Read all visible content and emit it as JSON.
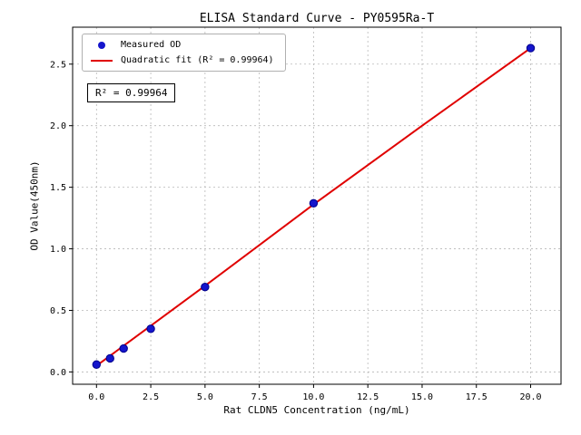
{
  "chart_data": {
    "type": "scatter",
    "title": "ELISA Standard Curve - PY0595Ra-T",
    "xlabel": "Rat CLDN5 Concentration (ng/mL)",
    "ylabel": "OD Value(450nm)",
    "xlim": [
      -1.1,
      21.4
    ],
    "ylim": [
      -0.1,
      2.8
    ],
    "grid": true,
    "xtick_values": [
      0.0,
      2.5,
      5.0,
      7.5,
      10.0,
      12.5,
      15.0,
      17.5,
      20.0
    ],
    "xtick_labels": [
      "0.0",
      "2.5",
      "5.0",
      "7.5",
      "10.0",
      "12.5",
      "15.0",
      "17.5",
      "20.0"
    ],
    "ytick_values": [
      0.0,
      0.5,
      1.0,
      1.5,
      2.0,
      2.5
    ],
    "ytick_labels": [
      "0.0",
      "0.5",
      "1.0",
      "1.5",
      "2.0",
      "2.5"
    ],
    "colors": {
      "scatter": "#1515cc",
      "scatter_edge": "#00008b",
      "fit_line": "#e00000"
    },
    "legend": {
      "position": "upper-left",
      "entries": [
        {
          "label": "Measured OD",
          "marker": "dot",
          "color": "#1515cc"
        },
        {
          "label": "Quadratic fit (R² = 0.99964)",
          "marker": "line",
          "color": "#e00000"
        }
      ]
    },
    "annotation": "R² = 0.99964",
    "series": [
      {
        "name": "Measured OD",
        "type": "scatter",
        "color": "#1515cc",
        "edge": "#00008b",
        "points": [
          [
            0,
            0.06
          ],
          [
            0.625,
            0.11
          ],
          [
            1.25,
            0.19
          ],
          [
            2.5,
            0.35
          ],
          [
            5,
            0.69
          ],
          [
            10,
            1.37
          ],
          [
            20,
            2.63
          ]
        ]
      },
      {
        "name": "Quadratic fit",
        "type": "line",
        "color": "#e00000",
        "points": [
          [
            0,
            0.05
          ],
          [
            5,
            0.7
          ],
          [
            10,
            1.36
          ],
          [
            15,
            2.0
          ],
          [
            20,
            2.63
          ]
        ]
      }
    ]
  }
}
